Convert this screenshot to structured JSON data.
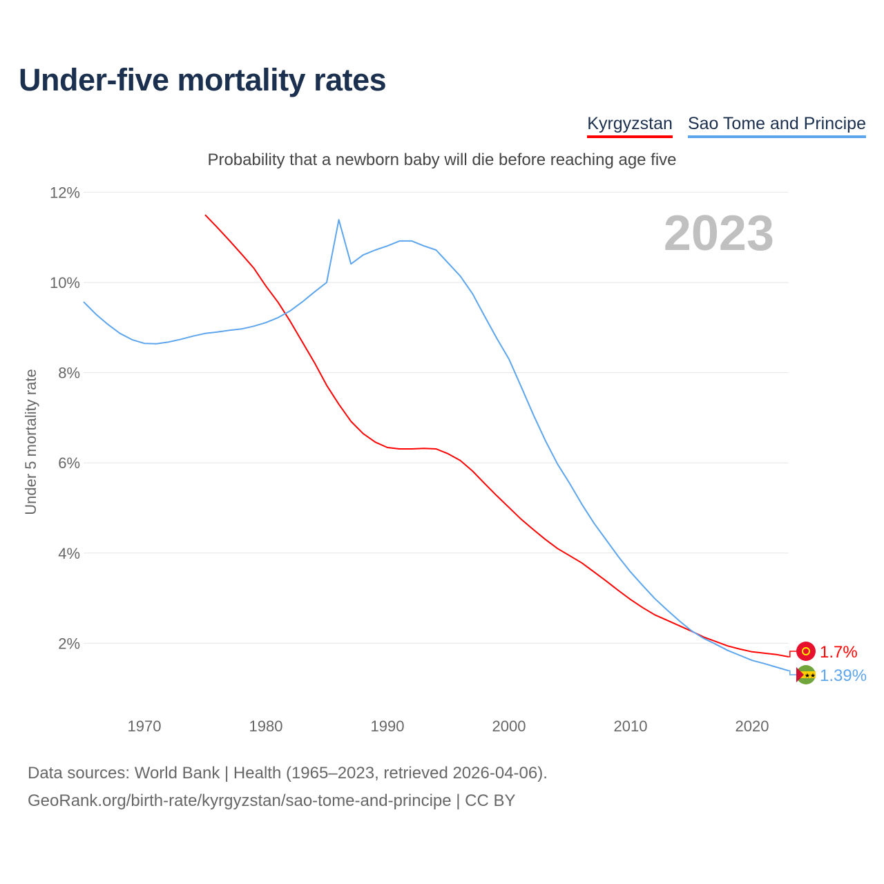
{
  "title": "Under-five mortality rates",
  "subtitle": "Probability that a newborn baby will die before reaching age five",
  "footer": {
    "line1": "Data sources: World Bank | Health (1965–2023, retrieved 2026-04-06).",
    "line2": "GeoRank.org/birth-rate/kyrgyzstan/sao-tome-and-principe | CC BY"
  },
  "chart_data": {
    "type": "line",
    "title": "Under-five mortality rates",
    "ylabel": "Under 5 mortality rate",
    "xlabel": "",
    "year_label": "2023",
    "ylim": [
      0,
      12
    ],
    "xlim": [
      1965,
      2023
    ],
    "yticks": [
      {
        "v": 2,
        "label": "2%"
      },
      {
        "v": 4,
        "label": "4%"
      },
      {
        "v": 6,
        "label": "6%"
      },
      {
        "v": 8,
        "label": "8%"
      },
      {
        "v": 10,
        "label": "10%"
      },
      {
        "v": 12,
        "label": "12%"
      }
    ],
    "xticks": [
      {
        "v": 1970,
        "label": "1970"
      },
      {
        "v": 1980,
        "label": "1980"
      },
      {
        "v": 1990,
        "label": "1990"
      },
      {
        "v": 2000,
        "label": "2000"
      },
      {
        "v": 2010,
        "label": "2010"
      },
      {
        "v": 2020,
        "label": "2020"
      }
    ],
    "grid": true,
    "legend_position": "top-right",
    "series": [
      {
        "name": "Kyrgyzstan",
        "color": "#ff0000",
        "end_label": "1.7%",
        "flag": "kyrgyzstan-flag",
        "start_year": 1975,
        "values": [
          11.5,
          11.22,
          10.93,
          10.63,
          10.32,
          9.92,
          9.56,
          9.14,
          8.68,
          8.22,
          7.72,
          7.3,
          6.92,
          6.65,
          6.46,
          6.34,
          6.31,
          6.31,
          6.32,
          6.31,
          6.2,
          6.05,
          5.82,
          5.54,
          5.27,
          5.01,
          4.75,
          4.52,
          4.3,
          4.1,
          3.94,
          3.78,
          3.58,
          3.38,
          3.17,
          2.97,
          2.79,
          2.63,
          2.51,
          2.39,
          2.27,
          2.14,
          2.04,
          1.94,
          1.87,
          1.81,
          1.78,
          1.75,
          1.7
        ]
      },
      {
        "name": "Sao Tome and Principe",
        "color": "#5da5ec",
        "end_label": "1.39%",
        "flag": "sao-tome-flag",
        "start_year": 1965,
        "values": [
          9.57,
          9.3,
          9.07,
          8.87,
          8.73,
          8.65,
          8.64,
          8.68,
          8.74,
          8.81,
          8.87,
          8.9,
          8.94,
          8.97,
          9.03,
          9.11,
          9.22,
          9.37,
          9.57,
          9.79,
          10.0,
          11.39,
          10.41,
          10.61,
          10.72,
          10.81,
          10.92,
          10.92,
          10.81,
          10.72,
          10.43,
          10.14,
          9.75,
          9.25,
          8.76,
          8.3,
          7.69,
          7.07,
          6.49,
          5.97,
          5.54,
          5.08,
          4.66,
          4.29,
          3.92,
          3.58,
          3.28,
          2.99,
          2.74,
          2.5,
          2.28,
          2.11,
          1.98,
          1.84,
          1.73,
          1.62,
          1.55,
          1.47,
          1.39
        ]
      }
    ]
  }
}
